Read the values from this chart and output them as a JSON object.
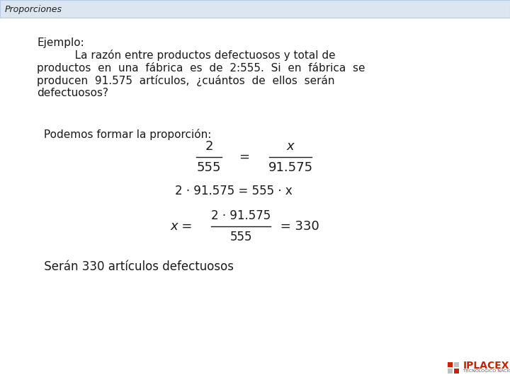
{
  "background_color": "#ffffff",
  "header_bg_color": "#dce6f1",
  "header_border_color": "#b8cce4",
  "header_text": "Proporciones",
  "header_text_color": "#1f1f1f",
  "header_fontsize": 9,
  "ejemplo_label": "Ejemplo:",
  "paragraph_lines": [
    "           La razón entre productos defectuosos y total de",
    "productos  en  una  fábrica  es  de  2:555.  Si  en  fábrica  se",
    "producen  91.575  artículos,  ¿cuántos  de  ellos  serán",
    "defectuosos?"
  ],
  "proporcion_label": " Podemos formar la proporción:",
  "fraction1_num": "2",
  "fraction1_den": "555",
  "equals1": "=",
  "fraction2_num": "x",
  "fraction2_den": "91.575",
  "eq2": "2 · 91.575 = 555 · x",
  "eq3_left": "x = ",
  "eq3_frac_num": "2 · 91.575",
  "eq3_frac_den": "555",
  "eq3_right": " = 330",
  "conclusion": " Serán 330 artículos defectuosos",
  "logo_text": "IPLACEX",
  "logo_subtext": "TECNOLÓGICO NACIONAL",
  "main_fontsize": 11,
  "math_fontsize": 12
}
